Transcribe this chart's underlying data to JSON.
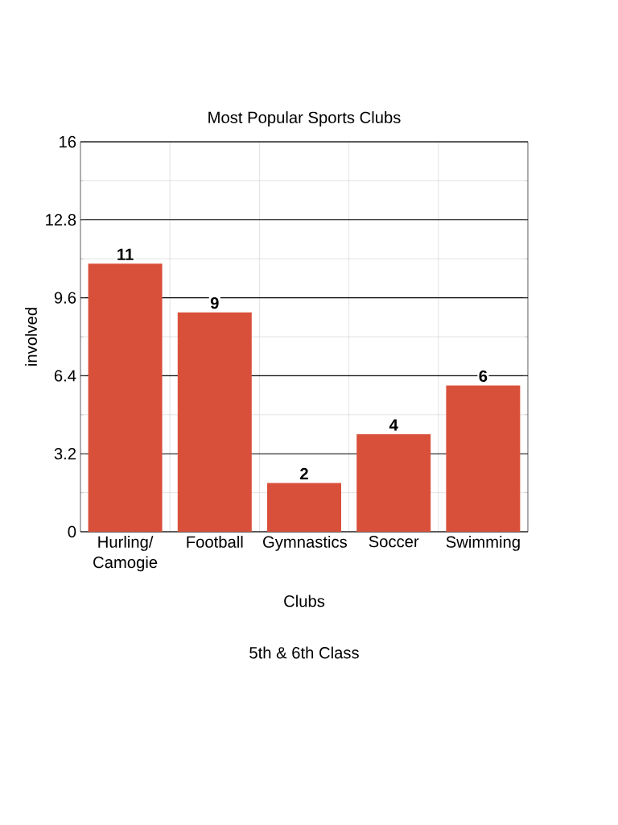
{
  "chart_data": {
    "type": "bar",
    "title": "Most Popular Sports Clubs",
    "xlabel": "Clubs",
    "ylabel": "involved",
    "annotations": [
      "5th & 6th Class"
    ],
    "categories": [
      "Hurling/ Camogie",
      "Football",
      "Gymnastics",
      "Soccer",
      "Swimming"
    ],
    "values": [
      11,
      9,
      2,
      4,
      6
    ],
    "color": "#d9503a",
    "ylim": [
      0,
      16
    ],
    "yticks": [
      0,
      3.2,
      6.4,
      9.6,
      12.8,
      16
    ],
    "grid": true,
    "data_labels": true
  }
}
